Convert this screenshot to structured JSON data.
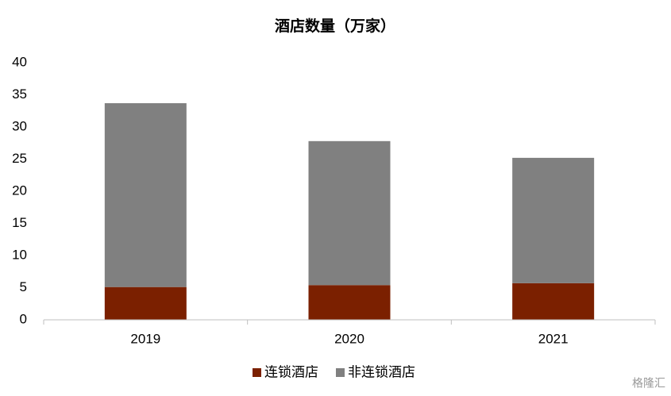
{
  "chart_data": {
    "type": "stacked_bar",
    "title": "酒店数量（万家）",
    "categories": [
      "2019",
      "2020",
      "2021"
    ],
    "series": [
      {
        "name": "连锁酒店",
        "color": "#7b2000",
        "values": [
          5.1,
          5.4,
          5.7
        ]
      },
      {
        "name": "非连锁酒店",
        "color": "#808080",
        "values": [
          28.6,
          22.4,
          19.5
        ]
      }
    ],
    "ylim": [
      0,
      40
    ],
    "yticks": [
      0,
      5,
      10,
      15,
      20,
      25,
      30,
      35,
      40
    ],
    "grid": false,
    "legend": "bottom"
  },
  "watermark": "格隆汇"
}
